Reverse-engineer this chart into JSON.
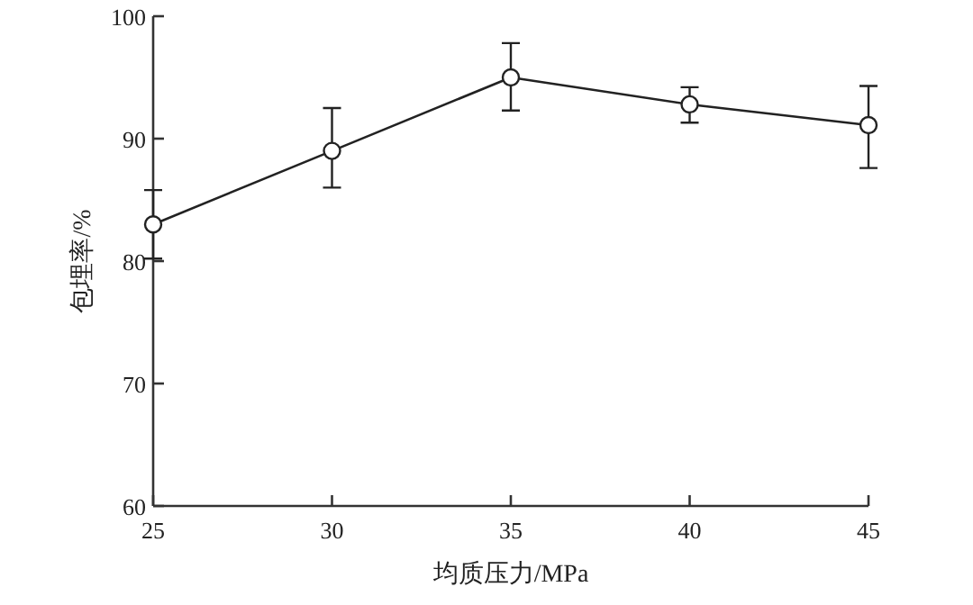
{
  "chart_data": {
    "type": "line",
    "xlabel": "均质压力/MPa",
    "ylabel": "包埋率/%",
    "x": [
      25,
      30,
      35,
      40,
      45
    ],
    "series": [
      {
        "color": "#222222",
        "values": [
          83,
          89,
          95,
          92.8,
          91.1
        ],
        "errors": [
          2.8,
          [
            86,
            92.5
          ],
          [
            92.3,
            97.8
          ],
          [
            91.3,
            94.2
          ],
          [
            87.6,
            94.3
          ]
        ]
      }
    ],
    "xlim": [
      25,
      45
    ],
    "xticks": [
      25,
      30,
      35,
      40,
      45
    ],
    "ylim": [
      60,
      100
    ],
    "yticks": [
      60,
      70,
      80,
      90,
      100
    ],
    "marker": "circle",
    "line_style": "solid",
    "grid": false
  }
}
